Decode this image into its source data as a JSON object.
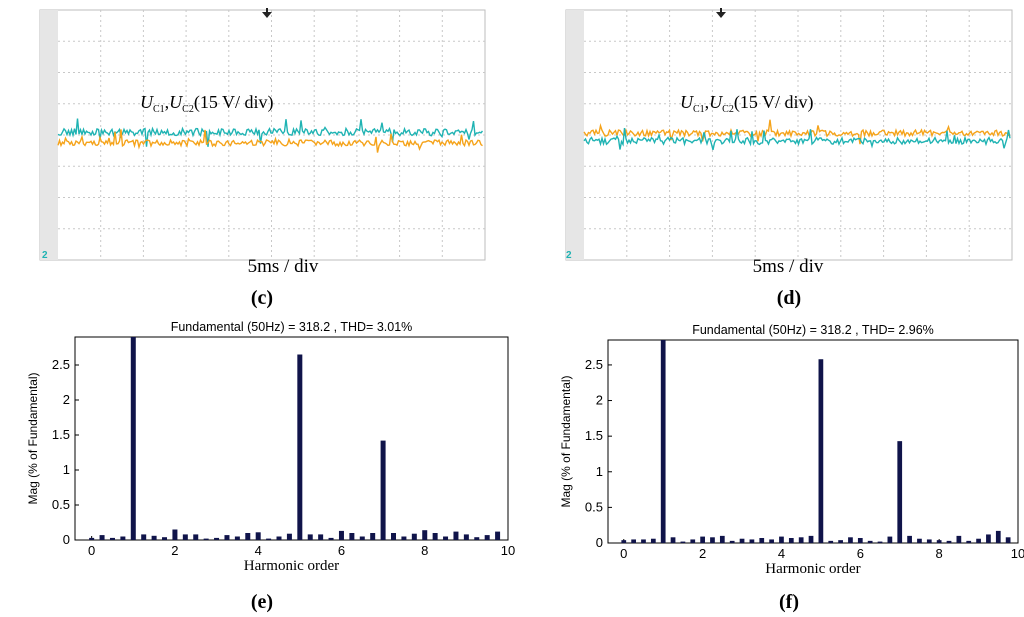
{
  "panels": {
    "c": {
      "label": "(c)",
      "time_scale": "5ms / div",
      "signal_label": "U_C1,U_C2(15 V/ div)",
      "signal_label_parts": {
        "u1": "U",
        "sub1": "C1",
        "sep": ",",
        "u2": "U",
        "sub2": "C2",
        "rest": "(15 V/ div)"
      },
      "channel_marker": "2"
    },
    "d": {
      "label": "(d)",
      "time_scale": "5ms / div",
      "signal_label": "U_C1,U_C2(15 V/ div)",
      "signal_label_parts": {
        "u1": "U",
        "sub1": "C1",
        "sep": ",",
        "u2": "U",
        "sub2": "C2",
        "rest": "(15 V/ div)"
      },
      "channel_marker": "2"
    },
    "e": {
      "label": "(e)"
    },
    "f": {
      "label": "(f)"
    }
  },
  "colors": {
    "trace_orange": "#f5a31a",
    "trace_teal": "#1fb3b3",
    "bar": "#10144a",
    "grid": "#c8c8c8",
    "scope_bg": "#ffffff",
    "scope_strip": "#e6e6e6"
  },
  "chart_data": [
    {
      "panel": "e",
      "type": "bar",
      "title": "Fundamental (50Hz) = 318.2 , THD= 3.01%",
      "xlabel": "Harmonic order",
      "ylabel": "Mag (% of Fundamental)",
      "xlim": [
        -0.4,
        10
      ],
      "ylim": [
        0,
        2.9
      ],
      "xticks": [
        0,
        2,
        4,
        6,
        8,
        10
      ],
      "yticks": [
        0,
        0.5,
        1,
        1.5,
        2,
        2.5
      ],
      "ytick_labels": [
        "0",
        "0.5",
        "1",
        "1.5",
        "2",
        "2.5"
      ],
      "bar_width": 0.12,
      "x": [
        0,
        0.25,
        0.5,
        0.75,
        1,
        1.25,
        1.5,
        1.75,
        2,
        2.25,
        2.5,
        2.75,
        3,
        3.25,
        3.5,
        3.75,
        4,
        4.25,
        4.5,
        4.75,
        5,
        5.25,
        5.5,
        5.75,
        6,
        6.25,
        6.5,
        6.75,
        7,
        7.25,
        7.5,
        7.75,
        8,
        8.25,
        8.5,
        8.75,
        9,
        9.25,
        9.5,
        9.75
      ],
      "values": [
        0.03,
        0.07,
        0.03,
        0.05,
        2.9,
        0.08,
        0.06,
        0.04,
        0.15,
        0.08,
        0.08,
        0.02,
        0.03,
        0.07,
        0.05,
        0.1,
        0.11,
        0.02,
        0.05,
        0.09,
        2.65,
        0.08,
        0.08,
        0.03,
        0.13,
        0.1,
        0.05,
        0.1,
        1.42,
        0.1,
        0.05,
        0.09,
        0.14,
        0.1,
        0.05,
        0.12,
        0.08,
        0.04,
        0.07,
        0.12
      ]
    },
    {
      "panel": "f",
      "type": "bar",
      "title": "Fundamental (50Hz) = 318.2 , THD= 2.96%",
      "xlabel": "Harmonic order",
      "ylabel": "Mag (% of Fundamental)",
      "xlim": [
        -0.4,
        10
      ],
      "ylim": [
        0,
        2.85
      ],
      "xticks": [
        0,
        2,
        4,
        6,
        8,
        10
      ],
      "yticks": [
        0,
        0.5,
        1,
        1.5,
        2,
        2.5
      ],
      "ytick_labels": [
        "0",
        "0.5",
        "1",
        "1.5",
        "2",
        "2.5"
      ],
      "bar_width": 0.12,
      "x": [
        0,
        0.25,
        0.5,
        0.75,
        1,
        1.25,
        1.5,
        1.75,
        2,
        2.25,
        2.5,
        2.75,
        3,
        3.25,
        3.5,
        3.75,
        4,
        4.25,
        4.5,
        4.75,
        5,
        5.25,
        5.5,
        5.75,
        6,
        6.25,
        6.5,
        6.75,
        7,
        7.25,
        7.5,
        7.75,
        8,
        8.25,
        8.5,
        8.75,
        9,
        9.25,
        9.5,
        9.75
      ],
      "values": [
        0.04,
        0.05,
        0.05,
        0.06,
        2.85,
        0.08,
        0.02,
        0.05,
        0.09,
        0.08,
        0.1,
        0.03,
        0.06,
        0.05,
        0.07,
        0.05,
        0.09,
        0.07,
        0.08,
        0.1,
        2.58,
        0.03,
        0.04,
        0.08,
        0.07,
        0.03,
        0.02,
        0.09,
        1.43,
        0.1,
        0.06,
        0.05,
        0.04,
        0.03,
        0.1,
        0.03,
        0.06,
        0.12,
        0.17,
        0.08
      ]
    }
  ]
}
